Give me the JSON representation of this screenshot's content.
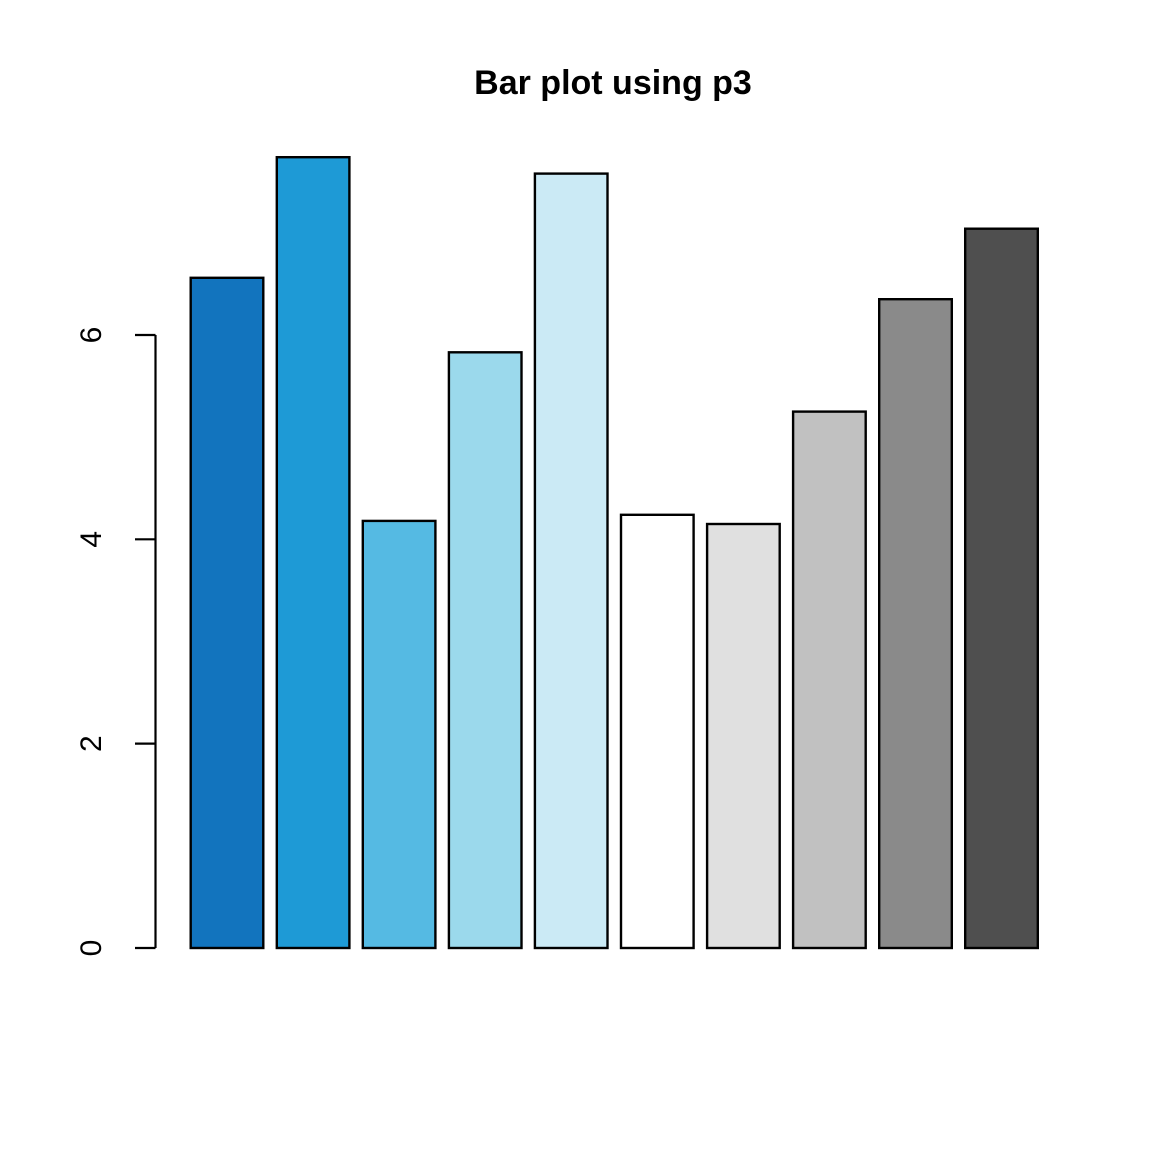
{
  "chart_data": {
    "type": "bar",
    "title": "Bar plot using p3",
    "xlabel": "",
    "ylabel": "",
    "categories": [
      "",
      "",
      "",
      "",
      "",
      "",
      "",
      "",
      "",
      ""
    ],
    "values": [
      6.56,
      7.74,
      4.18,
      5.83,
      7.58,
      4.24,
      4.15,
      5.25,
      6.35,
      7.04
    ],
    "bar_colors": [
      "#1274BE",
      "#1E9AD6",
      "#55BAE3",
      "#9BD9EC",
      "#CBEAF5",
      "#FFFFFF",
      "#E0E0E0",
      "#C1C1C1",
      "#8A8A8A",
      "#4F4F4F"
    ],
    "bar_border_color": "#000000",
    "axis_color": "#000000",
    "background_color": "#FFFFFF",
    "yticks": [
      0,
      2,
      4,
      6
    ],
    "ytick_labels": [
      "0",
      "2",
      "4",
      "6"
    ],
    "ylim": [
      0,
      7.74
    ],
    "grid": "off",
    "legend": "none",
    "x_axis_drawn": false,
    "y_axis_drawn": true
  }
}
